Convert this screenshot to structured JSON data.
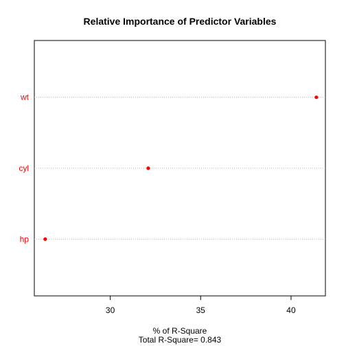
{
  "chart_data": {
    "type": "scatter",
    "title": "Relative Importance of Predictor Variables",
    "categories": [
      "wt",
      "cyl",
      "hp"
    ],
    "values": [
      41.4,
      32.1,
      26.4
    ],
    "xlim": [
      25.8,
      41.9
    ],
    "xticks": [
      30,
      35,
      40
    ],
    "xlabel": "% of R-Square",
    "subtitle": "Total R-Square= 0.843",
    "point_color": "#ff0000",
    "label_color": "#ff0000",
    "grid": "dotted horizontal lines per category"
  }
}
